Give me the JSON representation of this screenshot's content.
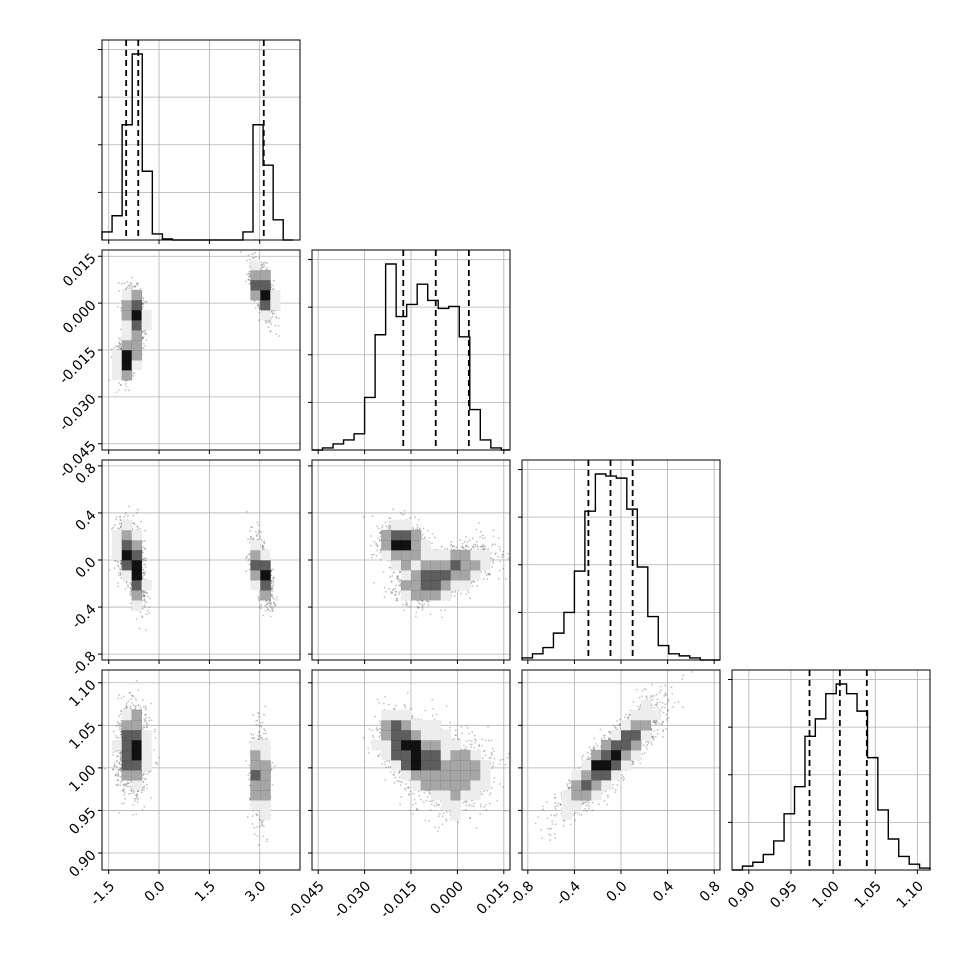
{
  "chart_data": {
    "type": "corner",
    "grid": true,
    "colors": {
      "line": "#000000",
      "grid": "#b0b0b0",
      "points": "#555555"
    },
    "parameters": [
      {
        "index": 0,
        "range": [
          -1.7,
          4.2
        ],
        "ticks": [
          "-1.5",
          "0.0",
          "1.5",
          "3.0"
        ],
        "tick_values": [
          -1.5,
          0.0,
          1.5,
          3.0
        ],
        "quantiles": [
          -0.98,
          -0.62,
          3.12
        ]
      },
      {
        "index": 1,
        "range": [
          -0.047,
          0.017
        ],
        "ticks": [
          "-0.045",
          "-0.030",
          "-0.015",
          "0.000",
          "0.015"
        ],
        "tick_values": [
          -0.045,
          -0.03,
          -0.015,
          0.0,
          0.015
        ],
        "quantiles": [
          -0.0175,
          -0.007,
          0.0037
        ]
      },
      {
        "index": 2,
        "range": [
          -0.85,
          0.85
        ],
        "ticks": [
          "-0.8",
          "-0.4",
          "0.0",
          "0.4",
          "0.8"
        ],
        "tick_values": [
          -0.8,
          -0.4,
          0.0,
          0.4,
          0.8
        ],
        "quantiles": [
          -0.28,
          -0.09,
          0.1
        ]
      },
      {
        "index": 3,
        "range": [
          0.88,
          1.115
        ],
        "ticks": [
          "0.90",
          "0.95",
          "1.00",
          "1.05",
          "1.10"
        ],
        "tick_values": [
          0.9,
          0.95,
          1.0,
          1.05,
          1.1
        ],
        "quantiles": [
          0.972,
          1.008,
          1.04
        ]
      }
    ],
    "histograms": [
      {
        "param": 0,
        "edges": [
          -1.7,
          -1.4,
          -1.1,
          -0.8,
          -0.5,
          -0.2,
          0.1,
          0.4,
          0.7,
          1.0,
          1.3,
          1.6,
          1.9,
          2.2,
          2.5,
          2.8,
          3.1,
          3.4,
          3.7,
          4.0
        ],
        "counts": [
          0.04,
          0.12,
          0.57,
          0.92,
          0.34,
          0.03,
          0.005,
          0,
          0,
          0,
          0,
          0,
          0,
          0,
          0.04,
          0.57,
          0.37,
          0.1,
          0
        ]
      },
      {
        "param": 1,
        "edges": [
          -0.047,
          -0.0436,
          -0.0402,
          -0.0368,
          -0.0334,
          -0.03,
          -0.0266,
          -0.0232,
          -0.0198,
          -0.0164,
          -0.013,
          -0.0096,
          -0.0062,
          -0.0028,
          0.0006,
          0.004,
          0.0074,
          0.0108,
          0.0142,
          0.017
        ],
        "counts": [
          0.0,
          0.01,
          0.03,
          0.05,
          0.08,
          0.26,
          0.57,
          0.92,
          0.66,
          0.72,
          0.82,
          0.74,
          0.7,
          0.71,
          0.56,
          0.2,
          0.05,
          0.01,
          0.0
        ]
      },
      {
        "param": 2,
        "edges": [
          -0.85,
          -0.76,
          -0.67,
          -0.58,
          -0.49,
          -0.4,
          -0.31,
          -0.22,
          -0.13,
          -0.04,
          0.05,
          0.14,
          0.23,
          0.32,
          0.41,
          0.5,
          0.59,
          0.68,
          0.77,
          0.85
        ],
        "counts": [
          0.01,
          0.03,
          0.06,
          0.13,
          0.23,
          0.43,
          0.72,
          0.9,
          0.89,
          0.88,
          0.73,
          0.45,
          0.21,
          0.07,
          0.03,
          0.02,
          0.01,
          0.0,
          0.0
        ]
      },
      {
        "param": 3,
        "edges": [
          0.88,
          0.8924,
          0.9047,
          0.9171,
          0.9295,
          0.9418,
          0.9542,
          0.9666,
          0.9789,
          0.9913,
          1.0037,
          1.016,
          1.0284,
          1.0408,
          1.0531,
          1.0655,
          1.0779,
          1.0903,
          1.1026,
          1.115
        ],
        "counts": [
          0.0,
          0.02,
          0.04,
          0.08,
          0.15,
          0.29,
          0.43,
          0.69,
          0.78,
          0.91,
          0.96,
          0.91,
          0.82,
          0.58,
          0.31,
          0.16,
          0.07,
          0.03,
          0.01
        ]
      }
    ],
    "joint_modes": [
      {
        "x_param": 0,
        "y_param": 1,
        "modes": [
          {
            "mean": [
              -0.72,
              -0.0035
            ],
            "sd": [
              0.16,
              0.0042
            ],
            "rho": -0.3,
            "weight": 0.35
          },
          {
            "mean": [
              -0.95,
              -0.0175
            ],
            "sd": [
              0.17,
              0.0035
            ],
            "rho": 0.3,
            "weight": 0.3
          },
          {
            "mean": [
              3.07,
              0.0045
            ],
            "sd": [
              0.17,
              0.0045
            ],
            "rho": -0.6,
            "weight": 0.35
          }
        ]
      },
      {
        "x_param": 0,
        "y_param": 2,
        "modes": [
          {
            "mean": [
              -0.9,
              0.08
            ],
            "sd": [
              0.2,
              0.12
            ],
            "rho": -0.2,
            "weight": 0.35
          },
          {
            "mean": [
              -0.7,
              -0.12
            ],
            "sd": [
              0.15,
              0.14
            ],
            "rho": -0.5,
            "weight": 0.3
          },
          {
            "mean": [
              3.06,
              -0.1
            ],
            "sd": [
              0.16,
              0.14
            ],
            "rho": -0.6,
            "weight": 0.35
          }
        ]
      },
      {
        "x_param": 1,
        "y_param": 2,
        "modes": [
          {
            "mean": [
              -0.018,
              0.13
            ],
            "sd": [
              0.0038,
              0.1
            ],
            "rho": -0.2,
            "weight": 0.35
          },
          {
            "mean": [
              -0.01,
              -0.18
            ],
            "sd": [
              0.005,
              0.1
            ],
            "rho": 0.2,
            "weight": 0.35
          },
          {
            "mean": [
              0.001,
              -0.05
            ],
            "sd": [
              0.0055,
              0.1
            ],
            "rho": 0.3,
            "weight": 0.3
          }
        ]
      },
      {
        "x_param": 0,
        "y_param": 3,
        "modes": [
          {
            "mean": [
              -0.78,
              1.022
            ],
            "sd": [
              0.22,
              0.024
            ],
            "rho": 0.0,
            "weight": 0.65
          },
          {
            "mean": [
              3.0,
              0.99
            ],
            "sd": [
              0.14,
              0.025
            ],
            "rho": -0.1,
            "weight": 0.35
          }
        ]
      },
      {
        "x_param": 1,
        "y_param": 3,
        "modes": [
          {
            "mean": [
              -0.018,
              1.03
            ],
            "sd": [
              0.004,
              0.019
            ],
            "rho": -0.3,
            "weight": 0.35
          },
          {
            "mean": [
              -0.01,
              1.008
            ],
            "sd": [
              0.0045,
              0.022
            ],
            "rho": 0.0,
            "weight": 0.35
          },
          {
            "mean": [
              0.001,
              0.99
            ],
            "sd": [
              0.005,
              0.022
            ],
            "rho": 0.2,
            "weight": 0.3
          }
        ]
      },
      {
        "x_param": 2,
        "y_param": 3,
        "modes": [
          {
            "mean": [
              -0.08,
              1.012
            ],
            "sd": [
              0.2,
              0.03
            ],
            "rho": 0.88,
            "weight": 1.0
          }
        ]
      }
    ]
  }
}
